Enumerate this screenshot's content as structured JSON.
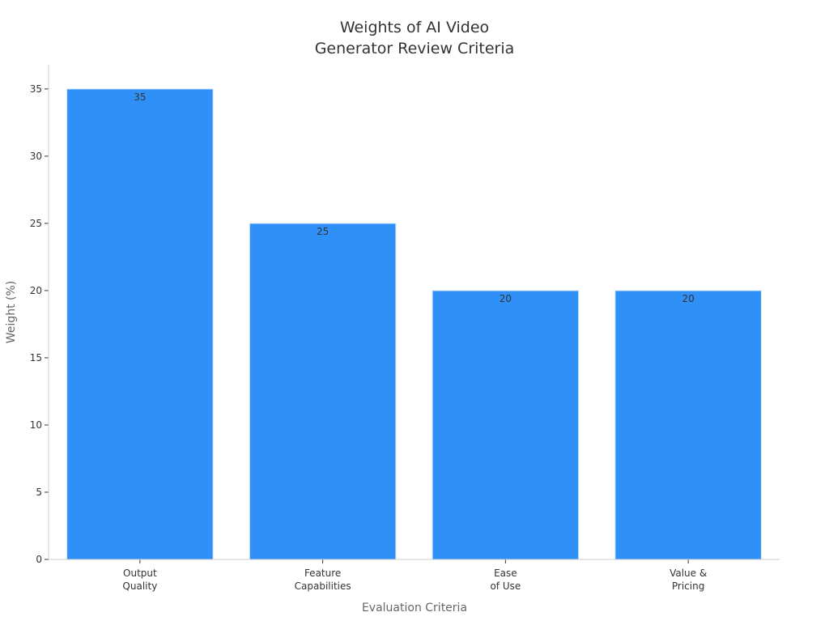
{
  "chart_data": {
    "type": "bar",
    "title_lines": [
      "Weights of AI Video",
      "Generator Review Criteria"
    ],
    "xlabel": "Evaluation Criteria",
    "ylabel": "Weight (%)",
    "categories": [
      [
        "Output",
        "Quality"
      ],
      [
        "Feature",
        "Capabilities"
      ],
      [
        "Ease",
        "of Use"
      ],
      [
        "Value &",
        "Pricing"
      ]
    ],
    "values": [
      35,
      25,
      20,
      20
    ],
    "data_labels": [
      "35",
      "25",
      "20",
      "20"
    ],
    "ylim": [
      0,
      36.8
    ],
    "yticks": [
      0,
      5,
      10,
      15,
      20,
      25,
      30,
      35
    ],
    "grid": false,
    "legend": "none",
    "colors": {
      "bar": "#2f90f7",
      "bar_edge": "#d7e6f7",
      "axis": "#cccccc",
      "tick_text": "#333333",
      "axis_label": "#666666",
      "title": "#333333",
      "data_label": "#333333"
    }
  }
}
